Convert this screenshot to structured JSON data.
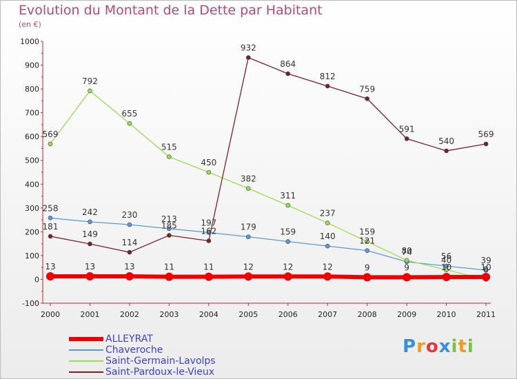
{
  "chart_data": {
    "type": "line",
    "title": "Evolution du Montant de la Dette par Habitant",
    "subtitle": "(en €)",
    "categories": [
      "2000",
      "2001",
      "2002",
      "2003",
      "2004",
      "2005",
      "2006",
      "2007",
      "2008",
      "2009",
      "2010",
      "2011"
    ],
    "ylim": [
      -100,
      1000
    ],
    "yticks": [
      -100,
      0,
      100,
      200,
      300,
      400,
      500,
      600,
      700,
      800,
      900,
      1000
    ],
    "grid": false,
    "legend_position": "bottom-left",
    "series": [
      {
        "name": "ALLEYRAT",
        "color": "#ee0000",
        "values": [
          13,
          13,
          13,
          11,
          11,
          12,
          12,
          12,
          9,
          9,
          10,
          10
        ],
        "labels": [
          "13",
          "13",
          "13",
          "11",
          "11",
          "12",
          "12",
          "12",
          "9",
          "9",
          "10",
          "10"
        ]
      },
      {
        "name": "Chaveroche",
        "color": "#5b9bd5",
        "values": [
          258,
          242,
          230,
          213,
          197,
          179,
          159,
          140,
          121,
          74,
          56,
          39
        ],
        "labels": [
          "258",
          "242",
          "230",
          "213",
          "197",
          "179",
          "159",
          "140",
          "121",
          "74",
          "56",
          "39"
        ]
      },
      {
        "name": "Saint-Germain-Lavolps",
        "color": "#99dd55",
        "values": [
          569,
          792,
          655,
          515,
          450,
          382,
          311,
          237,
          159,
          80,
          40,
          0
        ],
        "labels": [
          "569",
          "792",
          "655",
          "515",
          "450",
          "382",
          "311",
          "237",
          "159",
          "80",
          "40",
          "0"
        ]
      },
      {
        "name": "Saint-Pardoux-le-Vieux",
        "color": "#7a2222",
        "values": [
          181,
          149,
          114,
          185,
          162,
          932,
          864,
          812,
          759,
          591,
          540,
          569
        ],
        "labels": [
          "181",
          "149",
          "114",
          "185",
          "162",
          "932",
          "864",
          "812",
          "759",
          "591",
          "540",
          "569"
        ]
      }
    ]
  },
  "brand": {
    "text": "Proxiti",
    "letters": [
      {
        "ch": "P",
        "color": "#3a8fd8"
      },
      {
        "ch": "r",
        "color": "#f39a1c"
      },
      {
        "ch": "o",
        "color": "#e23a3a"
      },
      {
        "ch": "x",
        "color": "#3a8fd8"
      },
      {
        "ch": "i",
        "color": "#7ac143"
      },
      {
        "ch": "t",
        "color": "#f39a1c"
      },
      {
        "ch": "i",
        "color": "#7ac143"
      }
    ]
  }
}
